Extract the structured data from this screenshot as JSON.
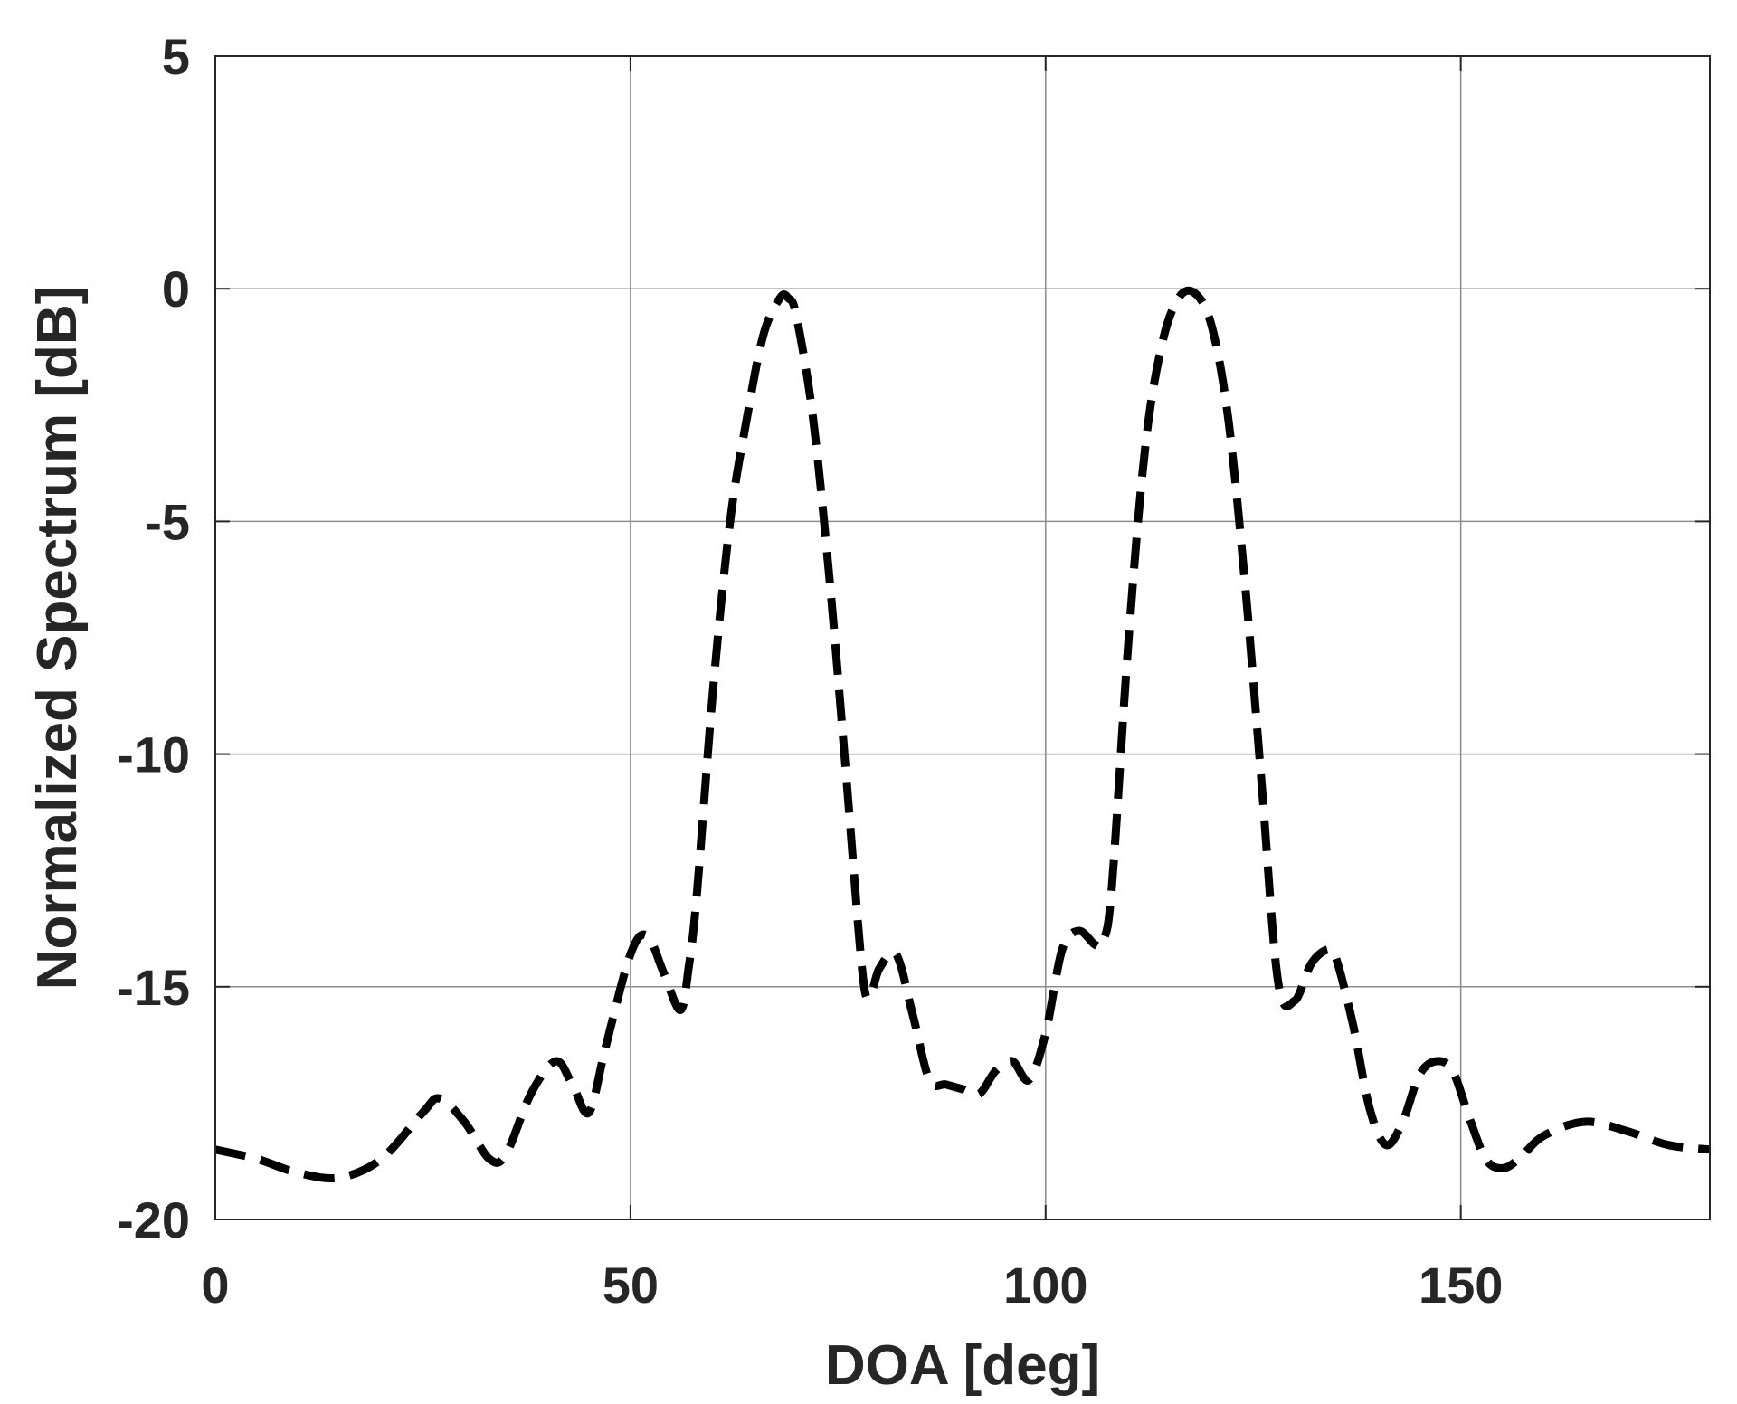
{
  "chart_data": {
    "type": "line",
    "title": "",
    "xlabel": "DOA [deg]",
    "ylabel": "Normalized Spectrum [dB]",
    "xlim": [
      0,
      180
    ],
    "ylim": [
      -20,
      5
    ],
    "xticks": [
      0,
      50,
      100,
      150
    ],
    "yticks": [
      5,
      0,
      -5,
      -10,
      -15,
      -20
    ],
    "grid": true,
    "legend": "none",
    "series": [
      {
        "line_style": "dashed",
        "color": "#000000",
        "x": [
          0,
          5,
          10,
          15,
          20,
          25,
          27,
          30,
          33,
          35,
          38,
          41,
          43,
          45,
          47,
          50,
          52,
          54,
          56,
          57,
          58,
          60,
          62,
          64,
          66,
          68,
          69,
          70,
          72,
          74,
          76,
          78,
          79,
          80,
          82,
          84,
          86,
          88,
          90,
          92,
          94,
          96,
          98,
          100,
          102,
          104,
          106,
          107,
          108,
          110,
          112,
          114,
          116,
          118,
          120,
          122,
          124,
          126,
          128,
          130,
          132,
          134,
          135,
          137,
          139,
          141,
          143,
          145,
          147,
          149,
          151,
          153,
          155,
          157,
          160,
          165,
          170,
          175,
          180
        ],
        "y": [
          -18.5,
          -18.7,
          -19.0,
          -19.1,
          -18.7,
          -17.7,
          -17.4,
          -17.9,
          -18.7,
          -18.6,
          -17.3,
          -16.6,
          -17.1,
          -17.7,
          -16.3,
          -14.3,
          -13.9,
          -14.7,
          -15.5,
          -14.6,
          -13.0,
          -8.5,
          -5.0,
          -2.8,
          -1.0,
          -0.2,
          -0.2,
          -0.6,
          -2.8,
          -6.3,
          -10.5,
          -14.8,
          -15.1,
          -14.6,
          -14.3,
          -15.6,
          -17.0,
          -17.1,
          -17.2,
          -17.3,
          -16.8,
          -16.6,
          -17.0,
          -16.0,
          -14.2,
          -13.8,
          -14.1,
          -14.0,
          -12.8,
          -7.5,
          -3.4,
          -1.2,
          -0.2,
          -0.1,
          -0.8,
          -2.8,
          -6.3,
          -10.6,
          -14.9,
          -15.3,
          -14.5,
          -14.2,
          -14.4,
          -15.8,
          -17.6,
          -18.4,
          -17.9,
          -16.9,
          -16.6,
          -16.8,
          -17.8,
          -18.7,
          -18.9,
          -18.7,
          -18.2,
          -17.9,
          -18.1,
          -18.4,
          -18.5
        ]
      }
    ]
  }
}
